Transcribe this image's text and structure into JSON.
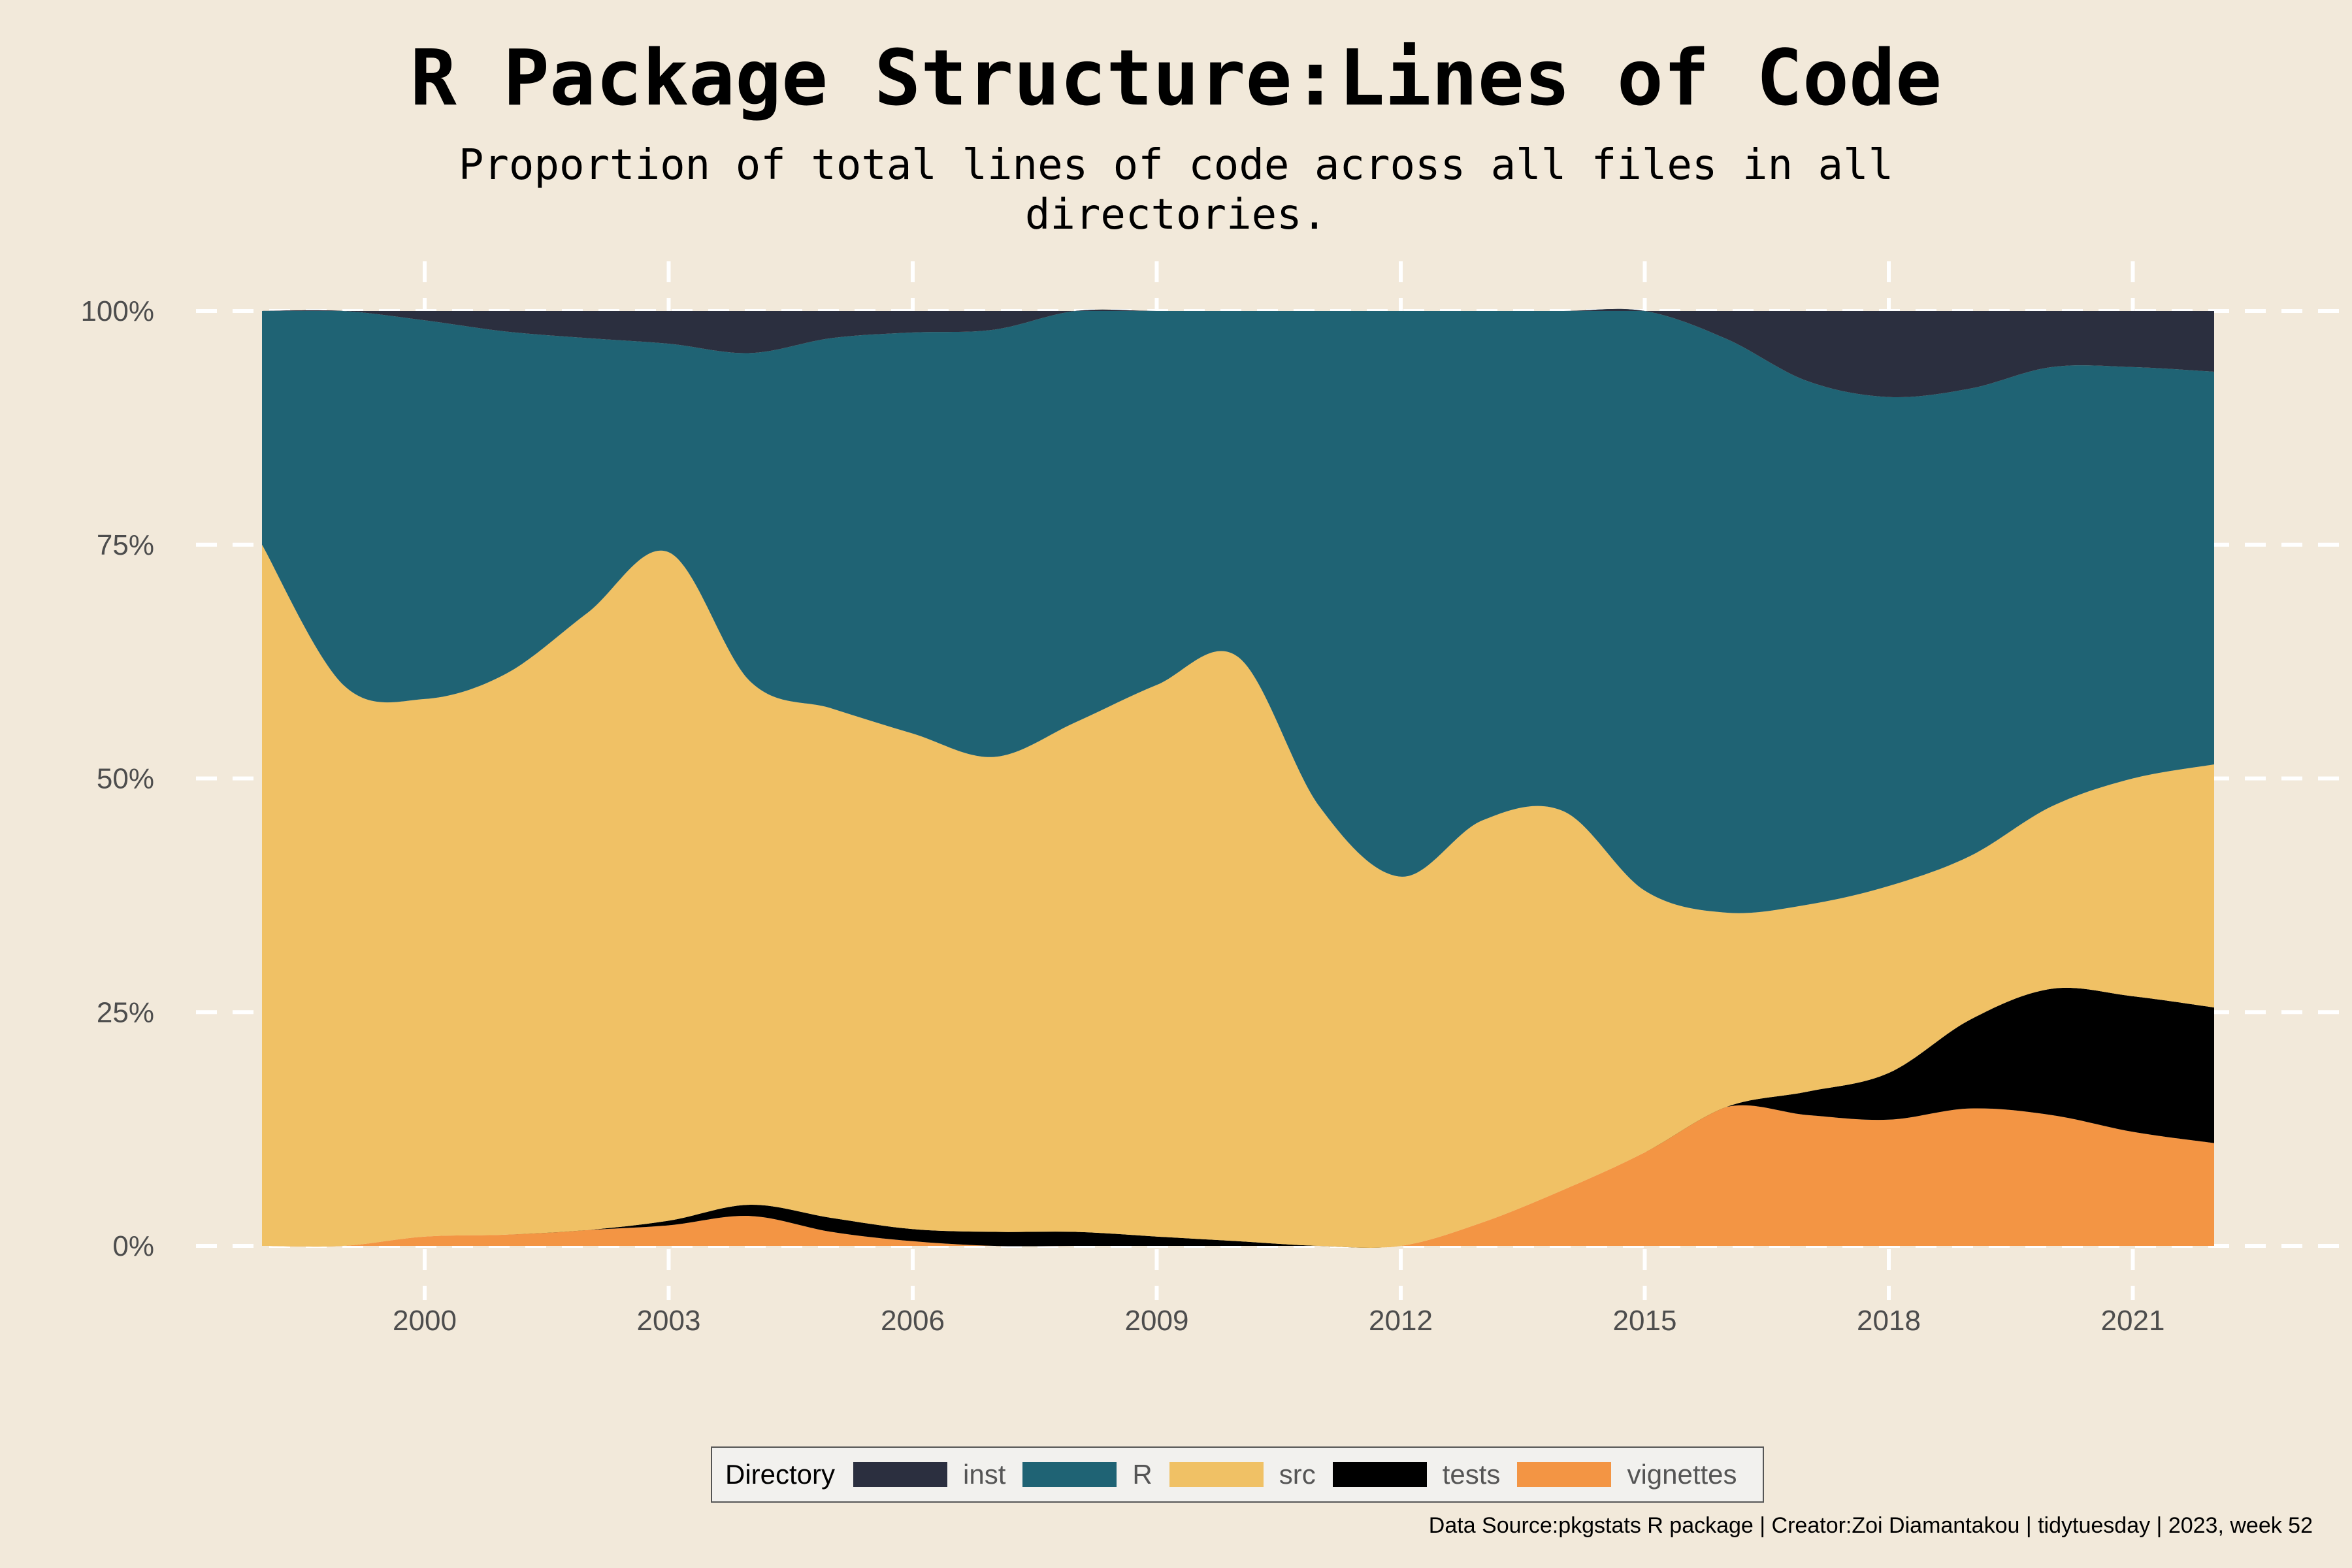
{
  "title": "R Package Structure:Lines of Code",
  "subtitle": "Proportion of total lines of code across all files in all directories.",
  "caption": "Data Source:pkgstats R package | Creator:Zoi Diamantakou | tidytuesday | 2023, week 52",
  "legend": {
    "title": "Directory",
    "items": [
      {
        "label": "inst",
        "color": "#2b2f3f"
      },
      {
        "label": "R",
        "color": "#1f6374"
      },
      {
        "label": "src",
        "color": "#f0c165"
      },
      {
        "label": "tests",
        "color": "#000000"
      },
      {
        "label": "vignettes",
        "color": "#f39544"
      }
    ]
  },
  "chart_data": {
    "type": "area",
    "stacked": "proportion",
    "title": "R Package Structure:Lines of Code",
    "subtitle": "Proportion of total lines of code across all files in all directories.",
    "xlabel": "",
    "ylabel": "",
    "xlim": [
      1998,
      2022
    ],
    "ylim": [
      0,
      1
    ],
    "x_ticks": [
      2000,
      2003,
      2006,
      2009,
      2012,
      2015,
      2018,
      2021
    ],
    "y_ticks": [
      "0%",
      "25%",
      "50%",
      "75%",
      "100%"
    ],
    "legend_position": "bottom",
    "x": [
      1998,
      1999,
      2000,
      2001,
      2002,
      2003,
      2004,
      2005,
      2006,
      2007,
      2008,
      2009,
      2010,
      2011,
      2012,
      2013,
      2014,
      2015,
      2016,
      2017,
      2018,
      2019,
      2020,
      2021,
      2022
    ],
    "series": [
      {
        "name": "vignettes",
        "color": "#f39544",
        "values": [
          0,
          0,
          0.01,
          0.012,
          0.017,
          0.022,
          0.032,
          0.015,
          0.005,
          0,
          0,
          0,
          0,
          0,
          0,
          0.025,
          0.06,
          0.1,
          0.15,
          0.14,
          0.135,
          0.147,
          0.14,
          0.122,
          0.11
        ]
      },
      {
        "name": "tests",
        "color": "#000000",
        "values": [
          0,
          0,
          0,
          0,
          0,
          0.005,
          0.012,
          0.015,
          0.013,
          0.015,
          0.015,
          0.01,
          0.005,
          0,
          0,
          0,
          0,
          0,
          0,
          0.025,
          0.05,
          0.095,
          0.135,
          0.145,
          0.145
        ]
      },
      {
        "name": "src",
        "color": "#f0c165",
        "values": [
          0.75,
          0.6,
          0.575,
          0.6,
          0.66,
          0.715,
          0.56,
          0.545,
          0.53,
          0.508,
          0.545,
          0.59,
          0.625,
          0.47,
          0.395,
          0.43,
          0.405,
          0.28,
          0.21,
          0.2,
          0.2,
          0.175,
          0.195,
          0.233,
          0.26
        ]
      },
      {
        "name": "R",
        "color": "#1f6374",
        "values": [
          0.25,
          0.4,
          0.405,
          0.366,
          0.294,
          0.223,
          0.351,
          0.396,
          0.429,
          0.457,
          0.44,
          0.4,
          0.37,
          0.53,
          0.605,
          0.545,
          0.535,
          0.62,
          0.62,
          0.56,
          0.523,
          0.5,
          0.47,
          0.44,
          0.42
        ]
      },
      {
        "name": "inst",
        "color": "#2b2f3f",
        "values": [
          0,
          0,
          0.01,
          0.022,
          0.029,
          0.035,
          0.045,
          0.029,
          0.023,
          0.02,
          0,
          0,
          0,
          0,
          0,
          0,
          0,
          0,
          0.03,
          0.075,
          0.092,
          0.083,
          0.06,
          0.06,
          0.065
        ]
      }
    ]
  }
}
